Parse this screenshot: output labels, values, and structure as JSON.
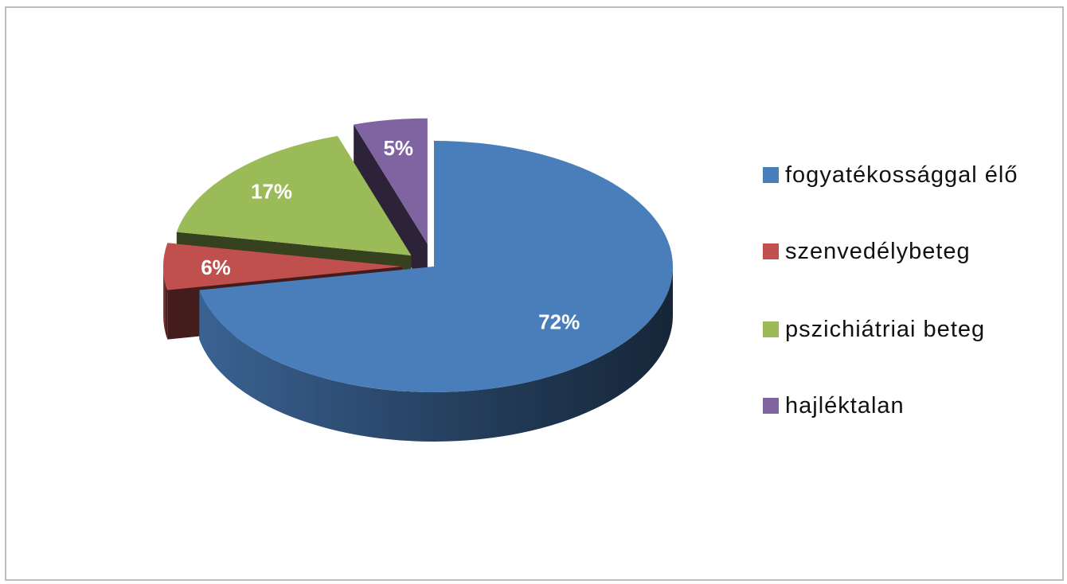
{
  "chart_data": {
    "type": "pie",
    "title": "",
    "categories": [
      "fogyatékossággal élő",
      "szenvedélybeteg",
      "pszichiátriai beteg",
      "hajléktalan"
    ],
    "values": [
      72,
      6,
      17,
      5
    ],
    "data_labels": [
      "72%",
      "6%",
      "17%",
      "5%"
    ],
    "colors": [
      "#4a7ebb",
      "#c0504d",
      "#9bbb59",
      "#8064a2"
    ],
    "exploded": true,
    "three_d": true,
    "legend_position": "right"
  },
  "legend": {
    "items": [
      {
        "label": "fogyatékossággal élő",
        "color": "#4a7ebb"
      },
      {
        "label": "szenvedélybeteg",
        "color": "#c0504d"
      },
      {
        "label": "pszichiátriai beteg",
        "color": "#9bbb59"
      },
      {
        "label": "hajléktalan",
        "color": "#8064a2"
      }
    ]
  }
}
